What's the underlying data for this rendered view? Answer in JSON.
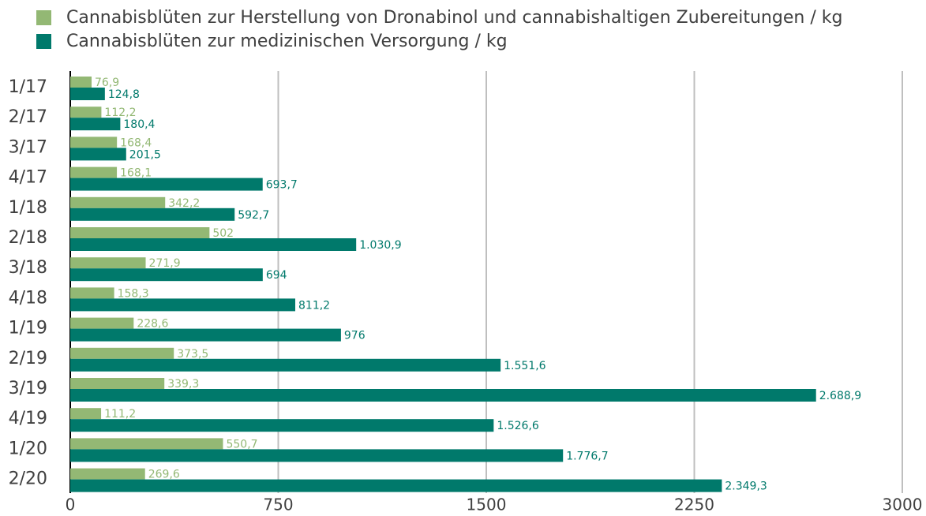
{
  "chart_data": {
    "type": "bar",
    "orientation": "horizontal",
    "categories": [
      "1/17",
      "2/17",
      "3/17",
      "4/17",
      "1/18",
      "2/18",
      "3/18",
      "4/18",
      "1/19",
      "2/19",
      "3/19",
      "4/19",
      "1/20",
      "2/20"
    ],
    "series": [
      {
        "name": "Cannabisblüten zur Herstellung von Dronabinol und cannabishaltigen Zubereitungen / kg",
        "color": "#93b874",
        "values": [
          76.9,
          112.2,
          168.4,
          168.1,
          342.2,
          502,
          271.9,
          158.3,
          228.6,
          373.5,
          339.3,
          111.2,
          550.7,
          269.6
        ],
        "value_labels": [
          "76,9",
          "112,2",
          "168,4",
          "168,1",
          "342,2",
          "502",
          "271,9",
          "158,3",
          "228,6",
          "373,5",
          "339,3",
          "111,2",
          "550,7",
          "269,6"
        ]
      },
      {
        "name": "Cannabisblüten zur medizinischen Versorgung  / kg",
        "color": "#00796b",
        "values": [
          124.8,
          180.4,
          201.5,
          693.7,
          592.7,
          1030.9,
          694,
          811.2,
          976,
          1551.6,
          2688.9,
          1526.6,
          1776.7,
          2349.3
        ],
        "value_labels": [
          "124,8",
          "180,4",
          "201,5",
          "693,7",
          "592,7",
          "1.030,9",
          "694",
          "811,2",
          "976",
          "1.551,6",
          "2.688,9",
          "1.526,6",
          "1.776,7",
          "2.349,3"
        ]
      }
    ],
    "xlim": [
      0,
      3000
    ],
    "xticks": [
      0,
      750,
      1500,
      2250,
      3000
    ],
    "grid": true
  }
}
